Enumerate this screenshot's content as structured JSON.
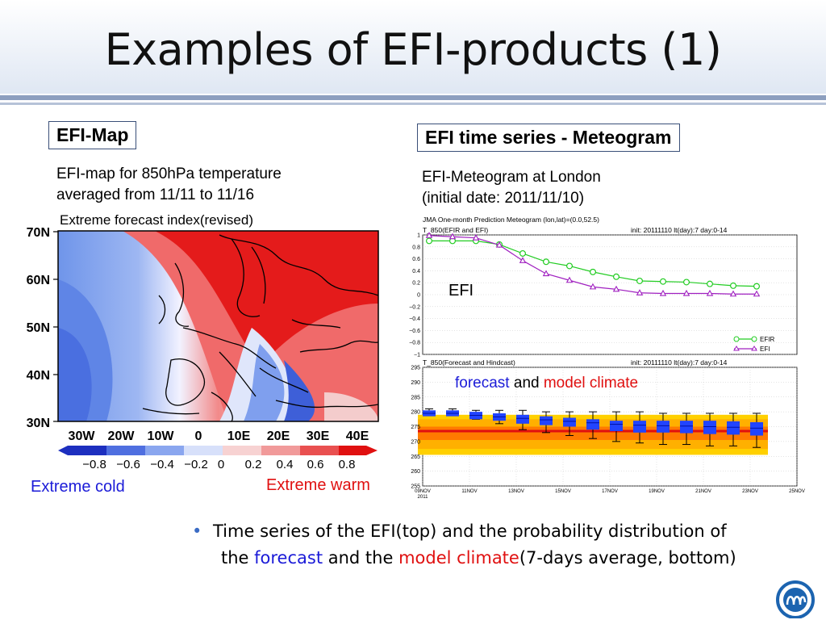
{
  "slide": {
    "title": "Examples of EFI-products (1)",
    "colors": {
      "accent_blue": "#1b1bd8",
      "accent_red": "#e01010",
      "rule": "#8d9fbf"
    }
  },
  "left": {
    "label": "EFI-Map",
    "caption_line1": "EFI-map for 850hPa temperature",
    "caption_line2": "averaged from 11/11 to 11/16",
    "map": {
      "title": "Extreme forecast index(revised)",
      "lat_ticks": [
        "70N",
        "60N",
        "50N",
        "40N",
        "30N"
      ],
      "lon_ticks": [
        "30W",
        "20W",
        "10W",
        "0",
        "10E",
        "20E",
        "30E",
        "40E"
      ],
      "colorbar_ticks": [
        "−0.8",
        "−0.6",
        "−0.4",
        "−0.2",
        "0",
        "0.2",
        "0.4",
        "0.6",
        "0.8"
      ]
    },
    "extreme_cold": "Extreme cold",
    "extreme_warm": "Extreme warm"
  },
  "right": {
    "label": "EFI time series - Meteogram",
    "caption_line1": "EFI-Meteogram at London",
    "caption_line2": "(initial date: 2011/11/10)",
    "efi_text": "EFI",
    "forecast_word": "forecast",
    "and_word": " and ",
    "model_climate_word": "model climate"
  },
  "chart_data": [
    {
      "type": "line",
      "header": "JMA One-month Prediction Meteogram (lon,lat)=(0.0,52.5)",
      "title": "T_850(EFIR and EFI)",
      "init": "init: 20111110 lt(day):7 day:0-14",
      "x": [
        0,
        1,
        2,
        3,
        4,
        5,
        6,
        7,
        8,
        9,
        10,
        11,
        12,
        13,
        14
      ],
      "ylim": [
        -1,
        1
      ],
      "yticks": [
        "1",
        "0.8",
        "0.6",
        "0.4",
        "0.2",
        "0",
        "−0.2",
        "−0.4",
        "−0.6",
        "−0.8",
        "−1"
      ],
      "series": [
        {
          "name": "EFIR",
          "color": "#22cc22",
          "values": [
            0.9,
            0.9,
            0.9,
            0.84,
            0.69,
            0.55,
            0.48,
            0.38,
            0.3,
            0.23,
            0.22,
            0.21,
            0.18,
            0.15,
            0.14
          ]
        },
        {
          "name": "EFI",
          "color": "#a020c0",
          "values": [
            0.99,
            0.97,
            0.95,
            0.83,
            0.57,
            0.35,
            0.24,
            0.13,
            0.09,
            0.03,
            0.02,
            0.02,
            0.02,
            0.01,
            0.01
          ]
        }
      ],
      "legend": "bottom-right"
    },
    {
      "type": "box",
      "title": "T_850(Forecast and Hindcast)",
      "init": "init: 20111110 lt(day):7 day:0-14",
      "ylim": [
        255,
        295
      ],
      "yticks": [
        "295",
        "290",
        "285",
        "280",
        "275",
        "270",
        "265",
        "260",
        "255"
      ],
      "xticks": [
        "09NOV\n2011",
        "11NOV",
        "13NOV",
        "15NOV",
        "17NOV",
        "19NOV",
        "21NOV",
        "23NOV",
        "25NOV"
      ],
      "forecast": {
        "median": [
          279.5,
          279.5,
          278.8,
          278.3,
          277.8,
          277.3,
          276.8,
          276.3,
          275.8,
          275.5,
          275.3,
          275.2,
          275.0,
          274.8,
          274.5
        ],
        "q25": [
          278.5,
          278.5,
          277.5,
          277.0,
          276.0,
          275.5,
          275.0,
          274.0,
          273.5,
          273.0,
          273.0,
          272.8,
          272.5,
          272.3,
          272.0
        ],
        "q75": [
          280.5,
          280.5,
          280.0,
          279.5,
          279.0,
          278.5,
          278.0,
          277.5,
          277.0,
          277.0,
          277.0,
          277.0,
          277.0,
          276.8,
          276.5
        ],
        "min": [
          280.0,
          279.5,
          277.5,
          276.0,
          274.0,
          273.0,
          272.0,
          271.0,
          270.0,
          269.5,
          269.0,
          269.0,
          268.5,
          268.5,
          268.0
        ],
        "max": [
          281.0,
          281.0,
          280.5,
          280.5,
          280.5,
          280.0,
          280.0,
          280.0,
          280.0,
          280.0,
          279.5,
          279.5,
          279.5,
          279.5,
          279.5
        ]
      },
      "climate": {
        "p5": 265.5,
        "p10": 267.5,
        "p25": 270.5,
        "p50": 273.5,
        "p75": 275.0,
        "p90": 277.5,
        "p95": 279.0
      }
    }
  ],
  "bullet": {
    "part1": "Time series of the EFI(top) and the probability distribution of",
    "part2": "the ",
    "forecast": "forecast",
    "part3": " and the ",
    "model_climate": "model climate",
    "part4": "(7-days average, bottom)"
  }
}
